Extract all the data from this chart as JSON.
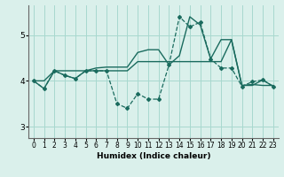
{
  "xlabel": "Humidex (Indice chaleur)",
  "xlim": [
    -0.5,
    23.5
  ],
  "ylim": [
    2.75,
    5.65
  ],
  "yticks": [
    3,
    4,
    5
  ],
  "xticks": [
    0,
    1,
    2,
    3,
    4,
    5,
    6,
    7,
    8,
    9,
    10,
    11,
    12,
    13,
    14,
    15,
    16,
    17,
    18,
    19,
    20,
    21,
    22,
    23
  ],
  "bg_color": "#daf0eb",
  "line_color": "#1a6b5e",
  "grid_color": "#a8d8cf",
  "line_dashed_x": [
    0,
    1,
    2,
    3,
    4,
    5,
    6,
    7,
    8,
    9,
    10,
    11,
    12,
    13,
    14,
    15,
    16,
    17,
    18,
    19,
    20,
    21,
    22,
    23
  ],
  "line_dashed_y": [
    4.0,
    3.83,
    4.22,
    4.12,
    4.05,
    4.22,
    4.22,
    4.22,
    3.5,
    3.4,
    3.72,
    3.6,
    3.6,
    4.35,
    5.4,
    5.18,
    5.28,
    4.48,
    4.28,
    4.28,
    3.88,
    3.98,
    4.02,
    3.88
  ],
  "line_upper_x": [
    0,
    1,
    2,
    3,
    4,
    5,
    6,
    7,
    8,
    9,
    10,
    11,
    12,
    13,
    14,
    15,
    16,
    17,
    18,
    19,
    20,
    21,
    22,
    23
  ],
  "line_upper_y": [
    4.0,
    4.0,
    4.22,
    4.22,
    4.22,
    4.22,
    4.28,
    4.3,
    4.3,
    4.3,
    4.62,
    4.68,
    4.68,
    4.35,
    4.55,
    5.4,
    5.22,
    4.48,
    4.9,
    4.9,
    3.9,
    3.92,
    3.9,
    3.9
  ],
  "line_lower_x": [
    0,
    1,
    2,
    3,
    4,
    5,
    6,
    7,
    8,
    9,
    10,
    11,
    12,
    13,
    14,
    15,
    16,
    17,
    18,
    19,
    20,
    21,
    22,
    23
  ],
  "line_lower_y": [
    4.0,
    3.83,
    4.22,
    4.12,
    4.05,
    4.22,
    4.22,
    4.22,
    4.22,
    4.22,
    4.42,
    4.42,
    4.42,
    4.42,
    4.42,
    4.42,
    4.42,
    4.42,
    4.42,
    4.9,
    3.9,
    3.9,
    4.02,
    3.88
  ]
}
